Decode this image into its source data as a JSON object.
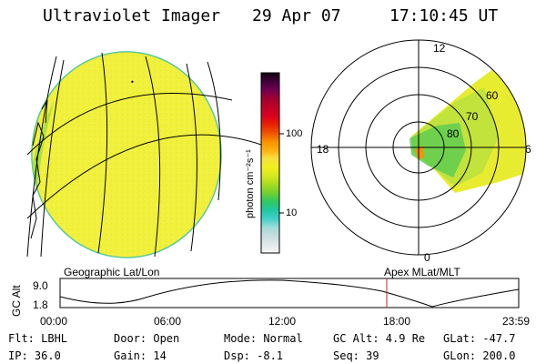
{
  "header": {
    "title": "Ultraviolet Imager",
    "date": "29 Apr 07",
    "time": "17:10:45 UT"
  },
  "colorbar": {
    "unit_label": "photon cm⁻²s⁻¹",
    "scale": "log",
    "tick_labels": [
      "100",
      "10"
    ],
    "colors": [
      "#f8f8f8",
      "#e0e8e8",
      "#c8dce0",
      "#a0dcd8",
      "#40d0c8",
      "#20c8a0",
      "#30c860",
      "#70d030",
      "#a8dc20",
      "#d8e820",
      "#f0f020",
      "#f8e040",
      "#ffb010",
      "#f89000",
      "#f05000",
      "#e82000",
      "#d80020",
      "#c00028",
      "#a00030",
      "#700050",
      "#400038",
      "#100010"
    ]
  },
  "polar_plot": {
    "left_label": "18",
    "top_label": "12",
    "right_label": "6",
    "bottom_label": "0",
    "ring_labels": [
      "80",
      "70",
      "60"
    ]
  },
  "timeline": {
    "title_left": "Geographic Lat/Lon",
    "title_right": "Apex MLat/MLT",
    "y_axis_label": "GC Alt",
    "y_ticks": [
      "9.0",
      "1.8"
    ],
    "x_ticks": [
      "00:00",
      "06:00",
      "12:00",
      "18:00",
      "23:59"
    ],
    "current_time_marker": "17:10:45",
    "marker_color": "#cc2222"
  },
  "info": {
    "filter": "Flt: LBHL",
    "ip": "IP: 36.0",
    "door": "Door: Open",
    "gain": "Gain: 14",
    "mode": "Mode: Normal",
    "dsp": "Dsp:   -8.1",
    "gc_alt": "GC Alt: 4.9 Re",
    "seq": "Seq: 39",
    "glat": "GLat: -47.7",
    "glon": "GLon: 200.0"
  }
}
